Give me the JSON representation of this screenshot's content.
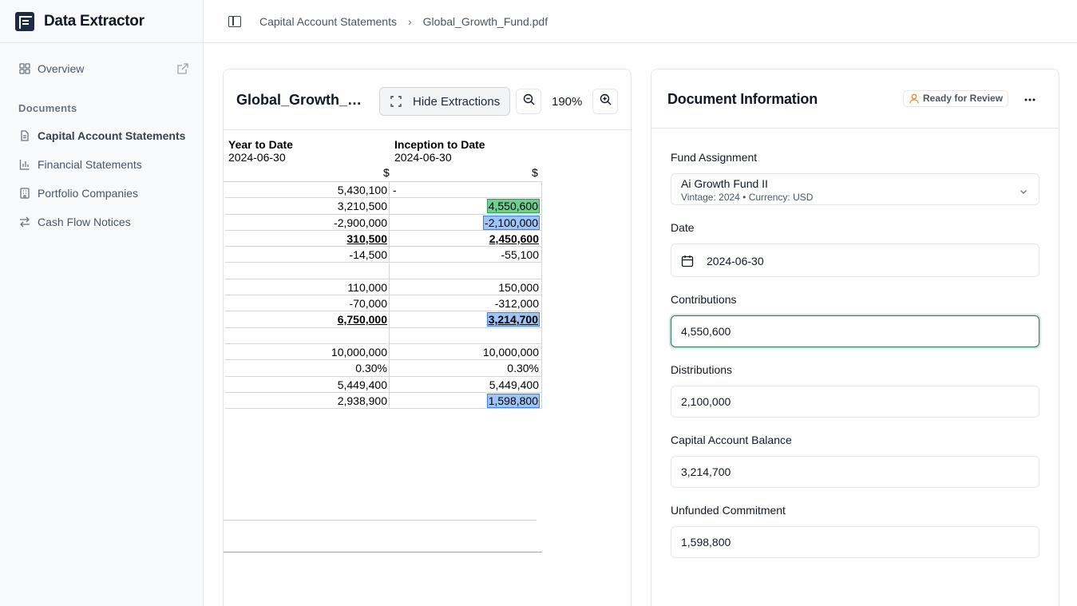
{
  "app": {
    "title": "Data Extractor"
  },
  "sidebar": {
    "overview_label": "Overview",
    "section_label": "Documents",
    "items": [
      {
        "label": "Capital Account Statements",
        "icon": "document-icon",
        "active": true
      },
      {
        "label": "Financial Statements",
        "icon": "bar-chart-icon",
        "active": false
      },
      {
        "label": "Portfolio Companies",
        "icon": "building-icon",
        "active": false
      },
      {
        "label": "Cash Flow Notices",
        "icon": "arrows-exchange-icon",
        "active": false
      }
    ]
  },
  "breadcrumb": {
    "parent": "Capital Account Statements",
    "separator": "›",
    "current": "Global_Growth_Fund.pdf"
  },
  "viewer": {
    "doc_title": "Global_Growth_Fund.pdf",
    "hide_label": "Hide Extractions",
    "zoom_level": "190%",
    "columns": [
      {
        "title": "Year to Date",
        "date": "2024-06-30",
        "currency": "$"
      },
      {
        "title": "Inception to Date",
        "date": "2024-06-30",
        "currency": "$"
      }
    ],
    "rows": [
      {
        "ytd": "5,430,100",
        "itd": "-"
      },
      {
        "ytd": "3,210,500",
        "itd": "4,550,600"
      },
      {
        "ytd": "-2,900,000",
        "itd": "-2,100,000"
      },
      {
        "ytd": "310,500",
        "itd": "2,450,600"
      },
      {
        "ytd": "-14,500",
        "itd": "-55,100"
      },
      {
        "ytd": "",
        "itd": ""
      },
      {
        "ytd": "110,000",
        "itd": "150,000"
      },
      {
        "ytd": "-70,000",
        "itd": "-312,000"
      },
      {
        "ytd": "6,750,000",
        "itd": "3,214,700"
      },
      {
        "ytd": "",
        "itd": ""
      },
      {
        "ytd": "10,000,000",
        "itd": "10,000,000"
      },
      {
        "ytd": "0.30%",
        "itd": "0.30%"
      },
      {
        "ytd": "5,449,400",
        "itd": "5,449,400"
      },
      {
        "ytd": "2,938,900",
        "itd": "1,598,800"
      }
    ]
  },
  "info": {
    "title": "Document Information",
    "status": "Ready for Review",
    "fund_label": "Fund Assignment",
    "fund_name": "Ai Growth Fund II",
    "fund_meta": "Vintage: 2024 • Currency: USD",
    "date_label": "Date",
    "date_value": "2024-06-30",
    "contributions_label": "Contributions",
    "contributions_value": "4,550,600",
    "distributions_label": "Distributions",
    "distributions_value": "2,100,000",
    "balance_label": "Capital Account Balance",
    "balance_value": "3,214,700",
    "unfunded_label": "Unfunded Commitment",
    "unfunded_value": "1,598,800"
  },
  "colors": {
    "accent_green": "#2f7a5d",
    "highlight_green": "#6fcf8e",
    "highlight_blue": "#9ec5f5",
    "status_orange": "#f08a24"
  }
}
